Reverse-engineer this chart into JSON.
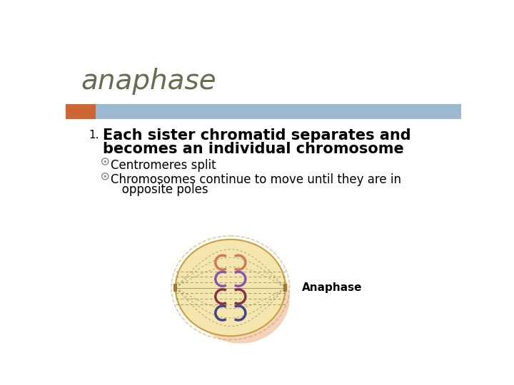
{
  "title": "anaphase",
  "title_color": "#6B6B52",
  "title_fontsize": 28,
  "title_fontstyle": "italic",
  "title_fontfamily": "sans-serif",
  "bg_color": "#ffffff",
  "header_bar_color": "#9DB8D2",
  "header_bar_left_color": "#CC6633",
  "bullet1_text_line1": "Each sister chromatid separates and",
  "bullet1_text_line2": "becomes an individual chromosome",
  "bullet1_fontsize": 15,
  "bullet1_fontweight": "bold",
  "sub1_text": "Centromeres split",
  "sub2_text": "Chromosomes continue to move until they are in",
  "sub2b_text": "   opposite poles",
  "sub_fontsize": 12,
  "number1_fontsize": 11,
  "anaphase_label": "Anaphase",
  "anaphase_label_fontsize": 11,
  "cell_color": "#F5E6B0",
  "cell_edge_color": "#C8A040",
  "cell_shadow_color": "#E8A878",
  "spindle_color": "#888855",
  "pole_color": "#A07830",
  "chr_orange": "#D0785A",
  "chr_purple": "#8855AA",
  "chr_red": "#883344",
  "chr_blue": "#444488"
}
